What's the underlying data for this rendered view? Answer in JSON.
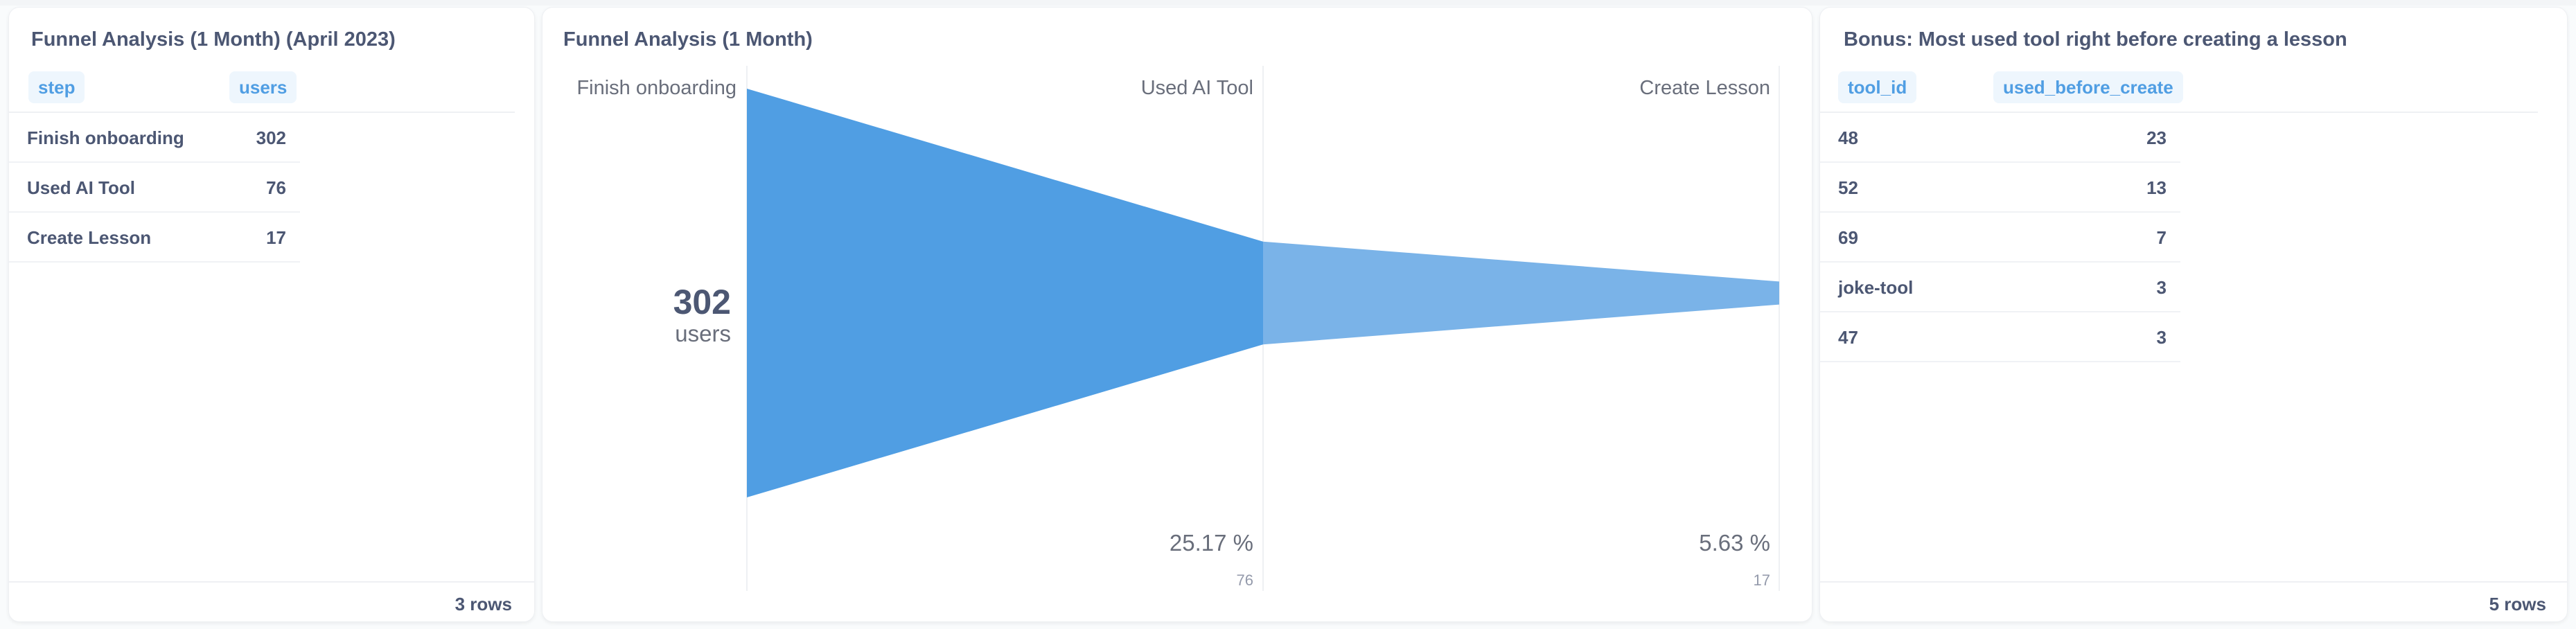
{
  "left_card": {
    "title": "Funnel Analysis (1 Month) (April 2023)",
    "columns": [
      "step",
      "users"
    ],
    "rows": [
      {
        "step": "Finish onboarding",
        "users": "302"
      },
      {
        "step": "Used AI Tool",
        "users": "76"
      },
      {
        "step": "Create Lesson",
        "users": "17"
      }
    ],
    "row_count": "3 rows"
  },
  "middle_card": {
    "title": "Funnel Analysis (1 Month)",
    "big_value": "302",
    "big_unit": "users",
    "colors": {
      "step1": "#509ee3",
      "step2": "#7ab3e8"
    },
    "chart_data": {
      "type": "funnel",
      "steps": [
        "Finish onboarding",
        "Used AI Tool",
        "Create Lesson"
      ],
      "values": [
        302,
        76,
        17
      ],
      "percentages": [
        "",
        "25.17 %",
        "5.63 %"
      ],
      "counts": [
        "",
        "76",
        "17"
      ]
    }
  },
  "right_card": {
    "title": "Bonus: Most used tool right before creating a lesson",
    "columns": [
      "tool_id",
      "used_before_create"
    ],
    "rows": [
      {
        "tool_id": "48",
        "used_before_create": "23"
      },
      {
        "tool_id": "52",
        "used_before_create": "13"
      },
      {
        "tool_id": "69",
        "used_before_create": "7"
      },
      {
        "tool_id": "joke-tool",
        "used_before_create": "3"
      },
      {
        "tool_id": "47",
        "used_before_create": "3"
      }
    ],
    "row_count": "5 rows"
  }
}
